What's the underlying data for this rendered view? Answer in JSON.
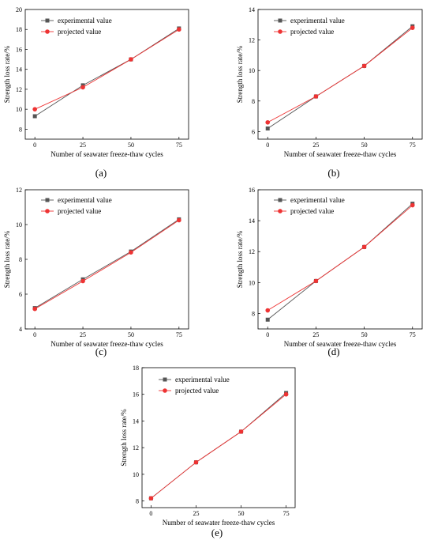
{
  "chart_data": [
    {
      "type": "line",
      "caption": "(a)",
      "xlabel": "Number of seawater freeze-thaw cycles",
      "ylabel": "Strength loss rate/%",
      "x": [
        0,
        25,
        50,
        75
      ],
      "xticks": [
        "0",
        "25",
        "50",
        "75"
      ],
      "ylim": [
        7,
        20
      ],
      "yticks": [
        "8",
        "10",
        "12",
        "14",
        "16",
        "18",
        "20"
      ],
      "legend_position": "top-left",
      "series": [
        {
          "name": "experimental value",
          "color": "#555555",
          "marker": "square",
          "values": [
            9.3,
            12.4,
            15.0,
            18.1
          ]
        },
        {
          "name": "projected value",
          "color": "#ee3333",
          "marker": "circle",
          "values": [
            10.0,
            12.2,
            15.0,
            18.0
          ]
        }
      ]
    },
    {
      "type": "line",
      "caption": "(b)",
      "xlabel": "Number of seawater freeze-thaw cycles",
      "ylabel": "Strength loss rate/%",
      "x": [
        0,
        25,
        50,
        75
      ],
      "xticks": [
        "0",
        "25",
        "50",
        "75"
      ],
      "ylim": [
        5.5,
        14
      ],
      "yticks": [
        "6",
        "8",
        "10",
        "12",
        "14"
      ],
      "legend_position": "top-left",
      "series": [
        {
          "name": "experimental value",
          "color": "#555555",
          "marker": "square",
          "values": [
            6.2,
            8.3,
            10.3,
            12.9
          ]
        },
        {
          "name": "projected value",
          "color": "#ee3333",
          "marker": "circle",
          "values": [
            6.6,
            8.3,
            10.3,
            12.8
          ]
        }
      ]
    },
    {
      "type": "line",
      "caption": "(c)",
      "xlabel": "Number of seawater freeze-thaw cycles",
      "ylabel": "Strength loss rate/%",
      "x": [
        0,
        25,
        50,
        75
      ],
      "xticks": [
        "0",
        "25",
        "50",
        "75"
      ],
      "ylim": [
        4,
        12
      ],
      "yticks": [
        "4",
        "6",
        "8",
        "10",
        "12"
      ],
      "legend_position": "top-left",
      "series": [
        {
          "name": "experimental value",
          "color": "#555555",
          "marker": "square",
          "values": [
            5.2,
            6.85,
            8.45,
            10.3
          ]
        },
        {
          "name": "projected value",
          "color": "#ee3333",
          "marker": "circle",
          "values": [
            5.15,
            6.75,
            8.4,
            10.25
          ]
        }
      ]
    },
    {
      "type": "line",
      "caption": "(d)",
      "xlabel": "Number of seawater freeze-thaw cycles",
      "ylabel": "Strength loss rate/%",
      "x": [
        0,
        25,
        50,
        75
      ],
      "xticks": [
        "0",
        "25",
        "50",
        "75"
      ],
      "ylim": [
        7,
        16
      ],
      "yticks": [
        "8",
        "10",
        "12",
        "14",
        "16"
      ],
      "legend_position": "top-left",
      "series": [
        {
          "name": "experimental value",
          "color": "#555555",
          "marker": "square",
          "values": [
            7.6,
            10.1,
            12.3,
            15.1
          ]
        },
        {
          "name": "projected value",
          "color": "#ee3333",
          "marker": "circle",
          "values": [
            8.2,
            10.1,
            12.3,
            15.0
          ]
        }
      ]
    },
    {
      "type": "line",
      "caption": "(e)",
      "xlabel": "Number of seawater freeze-thaw cycles",
      "ylabel": "Strength loss rate/%",
      "x": [
        0,
        25,
        50,
        75
      ],
      "xticks": [
        "0",
        "25",
        "50",
        "75"
      ],
      "ylim": [
        7.5,
        18
      ],
      "yticks": [
        "8",
        "10",
        "12",
        "14",
        "16",
        "18"
      ],
      "legend_position": "top-left",
      "series": [
        {
          "name": "experimental value",
          "color": "#555555",
          "marker": "square",
          "values": [
            8.2,
            10.9,
            13.2,
            16.1
          ]
        },
        {
          "name": "projected value",
          "color": "#ee3333",
          "marker": "circle",
          "values": [
            8.2,
            10.9,
            13.2,
            16.0
          ]
        }
      ]
    }
  ]
}
